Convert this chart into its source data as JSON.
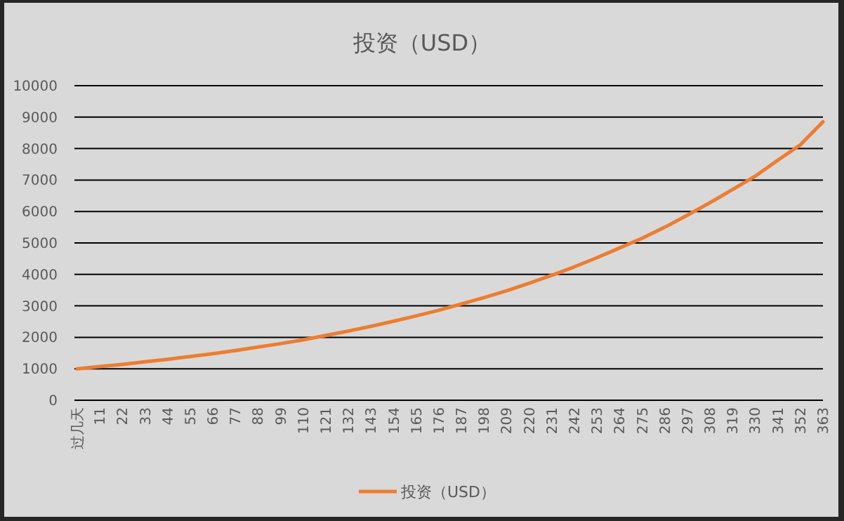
{
  "chart_data": {
    "type": "line",
    "title": "投资（USD）",
    "categories": [
      "过几天",
      "11",
      "22",
      "33",
      "44",
      "55",
      "66",
      "77",
      "88",
      "99",
      "110",
      "121",
      "132",
      "143",
      "154",
      "165",
      "176",
      "187",
      "198",
      "209",
      "220",
      "231",
      "242",
      "253",
      "264",
      "275",
      "286",
      "297",
      "308",
      "319",
      "330",
      "341",
      "352",
      "363"
    ],
    "series": [
      {
        "name": "投资（USD）",
        "color": "#ed7d31",
        "values": [
          1000,
          1070,
          1140,
          1220,
          1300,
          1390,
          1480,
          1580,
          1690,
          1800,
          1920,
          2060,
          2200,
          2350,
          2510,
          2680,
          2860,
          3060,
          3260,
          3480,
          3720,
          3970,
          4240,
          4530,
          4840,
          5150,
          5500,
          5880,
          6280,
          6700,
          7120,
          7630,
          8120,
          8850
        ]
      }
    ],
    "ylim": [
      0,
      10000
    ],
    "yticks": [
      0,
      1000,
      2000,
      3000,
      4000,
      5000,
      6000,
      7000,
      8000,
      9000,
      10000
    ],
    "grid": "y",
    "legend": "bottom",
    "marker": "none",
    "line_style": "solid"
  }
}
